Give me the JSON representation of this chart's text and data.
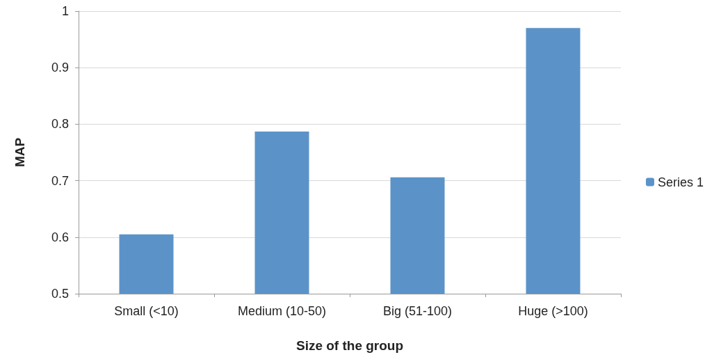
{
  "chart_data": {
    "type": "bar",
    "xlabel": "Size of the group",
    "ylabel": "MAP",
    "categories": [
      "Small (<10)",
      "Medium (10-50)",
      "Big (51-100)",
      "Huge (>100)"
    ],
    "series": [
      {
        "name": "Series 1",
        "color": "#5b93c9",
        "values": [
          0.605,
          0.787,
          0.706,
          0.97
        ]
      }
    ],
    "ylim": [
      0.5,
      1
    ],
    "yticks": [
      0.5,
      0.6,
      0.7,
      0.8,
      0.9,
      1
    ],
    "grid": "y",
    "legend": "right"
  }
}
